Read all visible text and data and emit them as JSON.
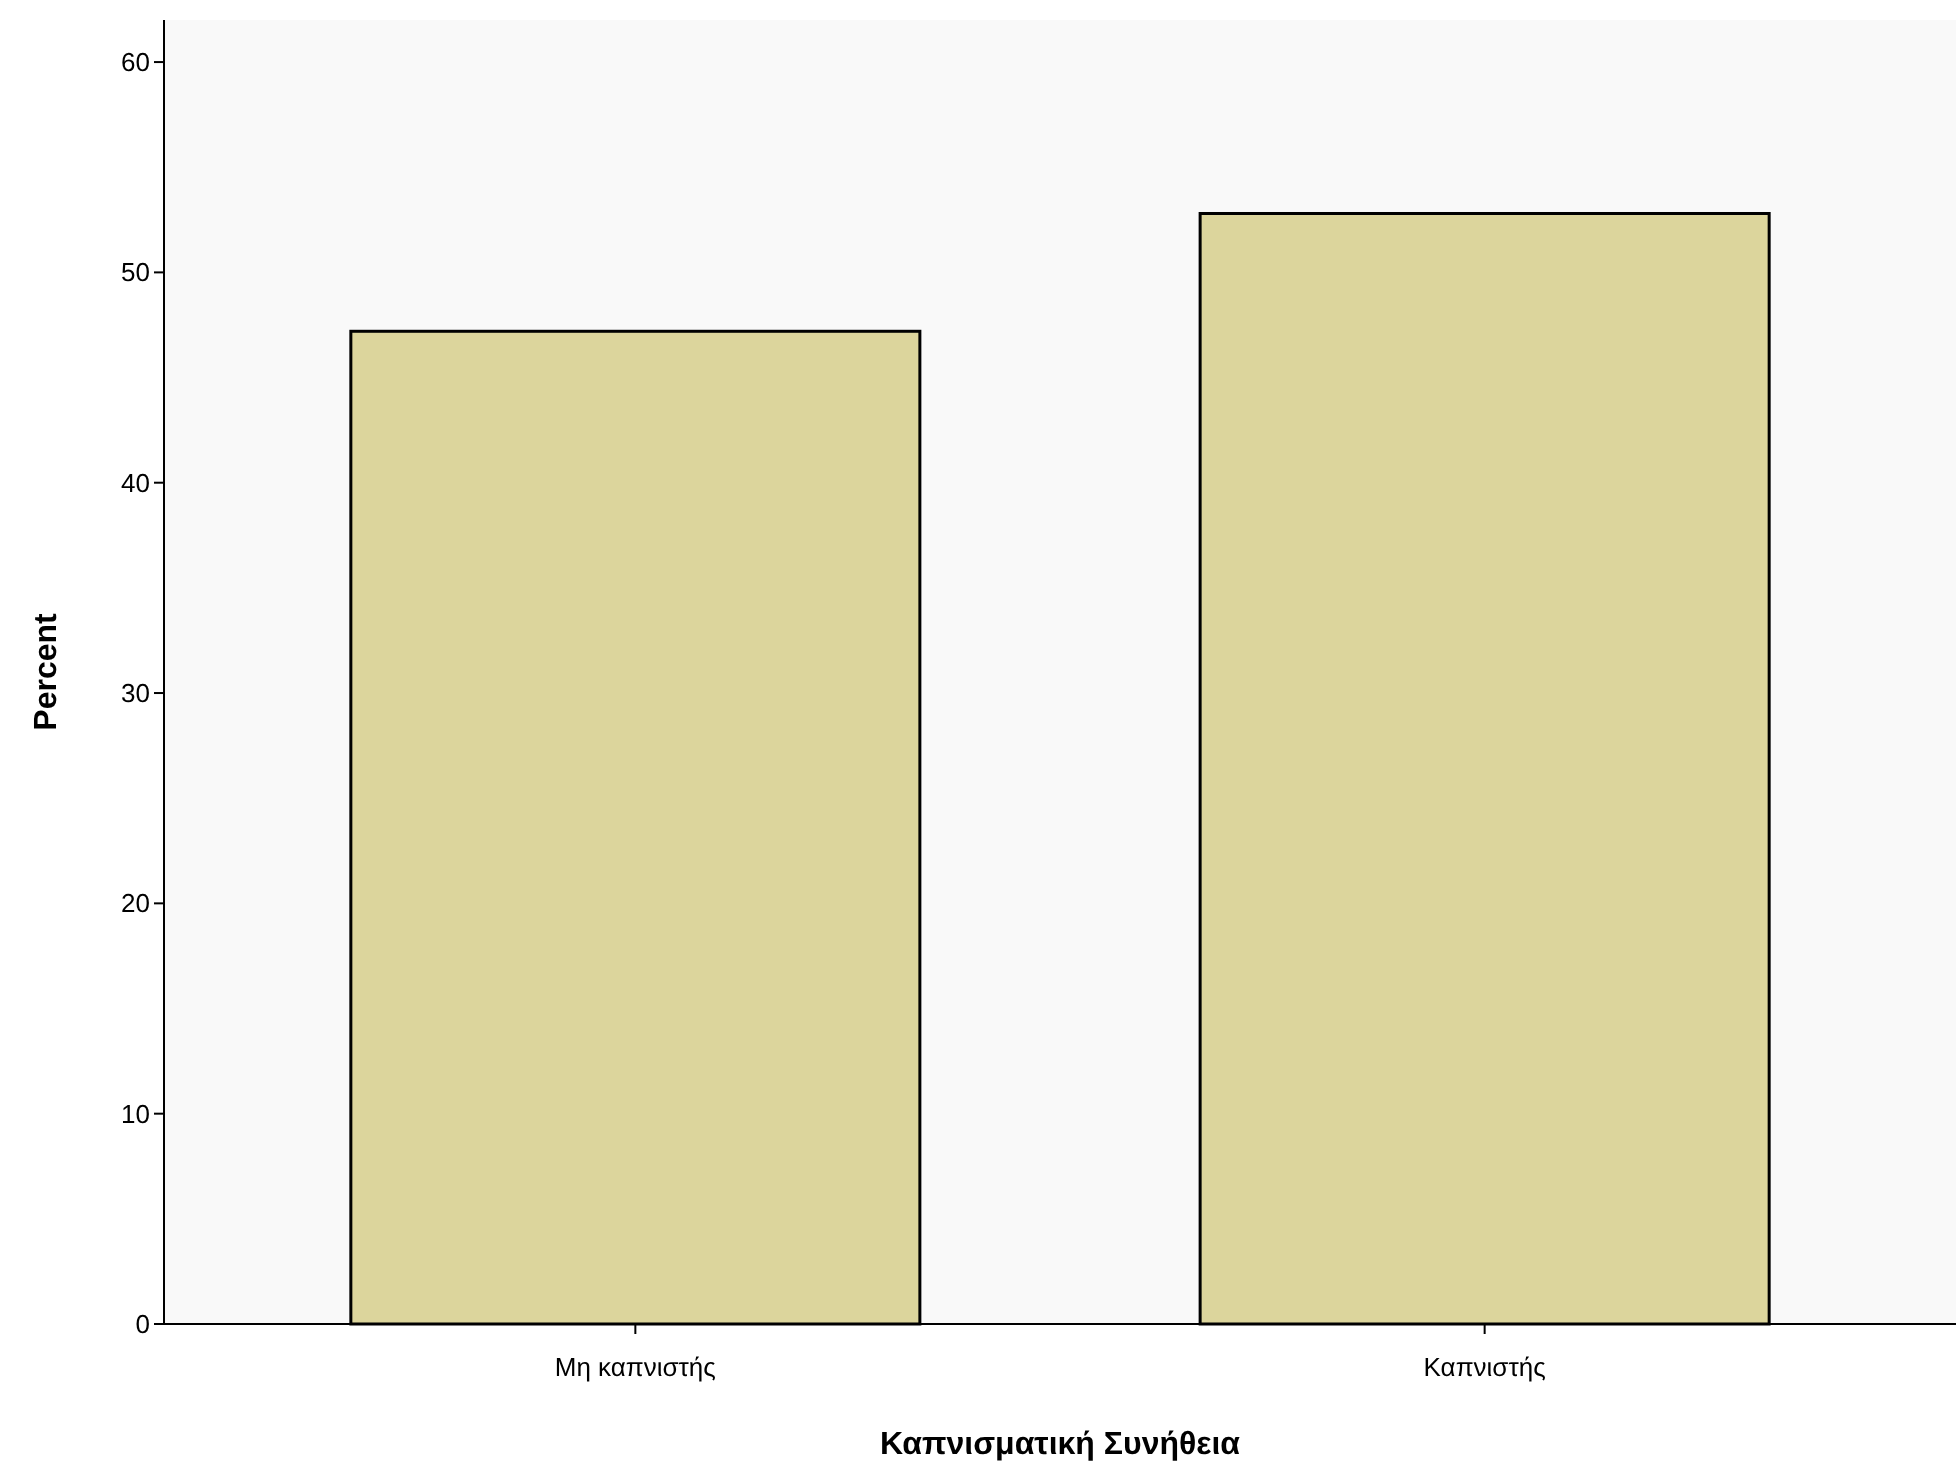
{
  "chart_data": {
    "type": "bar",
    "xlabel": "Καπνισματική Συνήθεια",
    "ylabel": "Percent",
    "categories": [
      "Μη καπνιστής",
      "Καπνιστής"
    ],
    "values": [
      47.2,
      52.8
    ],
    "color": "#dcd59c",
    "ylim": [
      0,
      62
    ],
    "yticks": [
      0,
      10,
      20,
      30,
      40,
      50,
      60
    ],
    "grid": false
  }
}
